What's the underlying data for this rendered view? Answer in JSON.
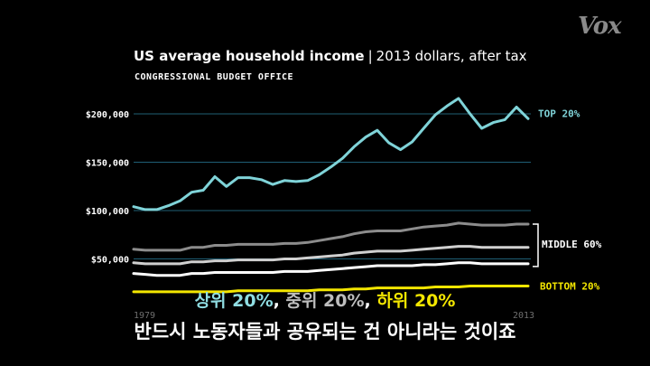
{
  "logo": "Vox",
  "chart_data": {
    "type": "line",
    "title": "US average household income",
    "subtitle": "2013 dollars, after tax",
    "source": "CONGRESSIONAL BUDGET OFFICE",
    "x_start_label": "1979",
    "x_end_label": "2013",
    "x": [
      1979,
      1980,
      1981,
      1982,
      1983,
      1984,
      1985,
      1986,
      1987,
      1988,
      1989,
      1990,
      1991,
      1992,
      1993,
      1994,
      1995,
      1996,
      1997,
      1998,
      1999,
      2000,
      2001,
      2002,
      2003,
      2004,
      2005,
      2006,
      2007,
      2008,
      2009,
      2010,
      2011,
      2012,
      2013
    ],
    "yticks": [
      {
        "value": 50000,
        "label": "$50,000"
      },
      {
        "value": 100000,
        "label": "$100,000"
      },
      {
        "value": 150000,
        "label": "$150,000"
      },
      {
        "value": 200000,
        "label": "$200,000"
      }
    ],
    "ylim": [
      0,
      230000
    ],
    "series": [
      {
        "name": "TOP 20%",
        "color": "#7fd3d8",
        "values": [
          104000,
          101000,
          101000,
          105000,
          110000,
          119000,
          121000,
          135000,
          125000,
          134000,
          134000,
          132000,
          127000,
          131000,
          130000,
          131000,
          137000,
          145000,
          154000,
          166000,
          176000,
          183000,
          170000,
          163000,
          171000,
          185000,
          199000,
          208000,
          216000,
          200000,
          185000,
          191000,
          194000,
          207000,
          195000
        ]
      },
      {
        "name": "MIDDLE 60%",
        "color": "#8c8c8c",
        "values": [
          60000,
          59000,
          59000,
          59000,
          59000,
          62000,
          62000,
          64000,
          64000,
          65000,
          65000,
          65000,
          65000,
          66000,
          66000,
          67000,
          69000,
          71000,
          73000,
          76000,
          78000,
          79000,
          79000,
          79000,
          81000,
          83000,
          84000,
          85000,
          87000,
          86000,
          85000,
          85000,
          85000,
          86000,
          86000
        ]
      },
      {
        "name": "MIDDLE 60%",
        "color": "#d0d0d0",
        "values": [
          46000,
          45000,
          45000,
          45000,
          45000,
          47000,
          47000,
          48000,
          48000,
          49000,
          49000,
          49000,
          49000,
          50000,
          50000,
          51000,
          52000,
          53000,
          54000,
          56000,
          57000,
          58000,
          58000,
          58000,
          59000,
          60000,
          61000,
          62000,
          63000,
          63000,
          62000,
          62000,
          62000,
          62000,
          62000
        ]
      },
      {
        "name": "MIDDLE 60%",
        "color": "#ffffff",
        "values": [
          35000,
          34000,
          33000,
          33000,
          33000,
          35000,
          35000,
          36000,
          36000,
          36000,
          36000,
          36000,
          36000,
          37000,
          37000,
          37000,
          38000,
          39000,
          40000,
          41000,
          42000,
          43000,
          43000,
          43000,
          43000,
          44000,
          44000,
          45000,
          46000,
          46000,
          45000,
          45000,
          45000,
          45000,
          45000
        ]
      },
      {
        "name": "BOTTOM 20%",
        "color": "#f3e600",
        "values": [
          16000,
          16000,
          16000,
          16000,
          16000,
          16000,
          16000,
          16000,
          16000,
          17000,
          17000,
          17000,
          17000,
          17000,
          17000,
          17000,
          18000,
          18000,
          18000,
          19000,
          19000,
          20000,
          20000,
          20000,
          20000,
          20000,
          21000,
          21000,
          21000,
          22000,
          22000,
          22000,
          22000,
          22000,
          22000
        ]
      }
    ]
  },
  "captions": {
    "line1_parts": [
      {
        "text": "상위 20%",
        "color": "#8fdde2"
      },
      {
        "text": ", ",
        "color": "#ffffff"
      },
      {
        "text": "중위 20%",
        "color": "#bdbdbd"
      },
      {
        "text": ", ",
        "color": "#ffffff"
      },
      {
        "text": "하위 20%",
        "color": "#f3e600"
      }
    ],
    "line2": "반드시 노동자들과 공유되는 건 아니라는 것이죠"
  }
}
